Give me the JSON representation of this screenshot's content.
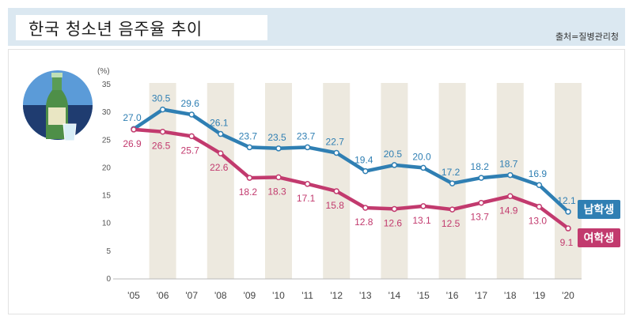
{
  "header": {
    "title": "한국 청소년 음주율 추이",
    "source": "출처=질병관리청"
  },
  "chart_data": {
    "type": "line",
    "unit_label": "(%)",
    "categories": [
      "'05",
      "'06",
      "'07",
      "'08",
      "'09",
      "'10",
      "'11",
      "'12",
      "'13",
      "'14",
      "'15",
      "'16",
      "'17",
      "'18",
      "'19",
      "'20"
    ],
    "ylim": [
      0,
      35
    ],
    "yticks": [
      0,
      5,
      10,
      15,
      20,
      25,
      30,
      35
    ],
    "series": [
      {
        "name": "남학생",
        "color": "#2f7fb3",
        "values": [
          27.0,
          30.5,
          29.6,
          26.1,
          23.7,
          23.5,
          23.7,
          22.7,
          19.4,
          20.5,
          20.0,
          17.2,
          18.2,
          18.7,
          16.9,
          12.1
        ],
        "labels": [
          "27.0",
          "30.5",
          "29.6",
          "26.1",
          "23.7",
          "23.5",
          "23.7",
          "22.7",
          "19.4",
          "20.5",
          "20.0",
          "17.2",
          "18.2",
          "18.7",
          "16.9",
          "12.1"
        ]
      },
      {
        "name": "여학생",
        "color": "#c23a6e",
        "values": [
          26.9,
          26.5,
          25.7,
          22.6,
          18.2,
          18.3,
          17.1,
          15.8,
          12.8,
          12.6,
          13.1,
          12.5,
          13.7,
          14.9,
          13.0,
          9.1
        ],
        "labels": [
          "26.9",
          "26.5",
          "25.7",
          "22.6",
          "18.2",
          "18.3",
          "17.1",
          "15.8",
          "12.8",
          "12.6",
          "13.1",
          "12.5",
          "13.7",
          "14.9",
          "13.0",
          "9.1"
        ]
      }
    ],
    "grid": false,
    "legend": "right"
  }
}
